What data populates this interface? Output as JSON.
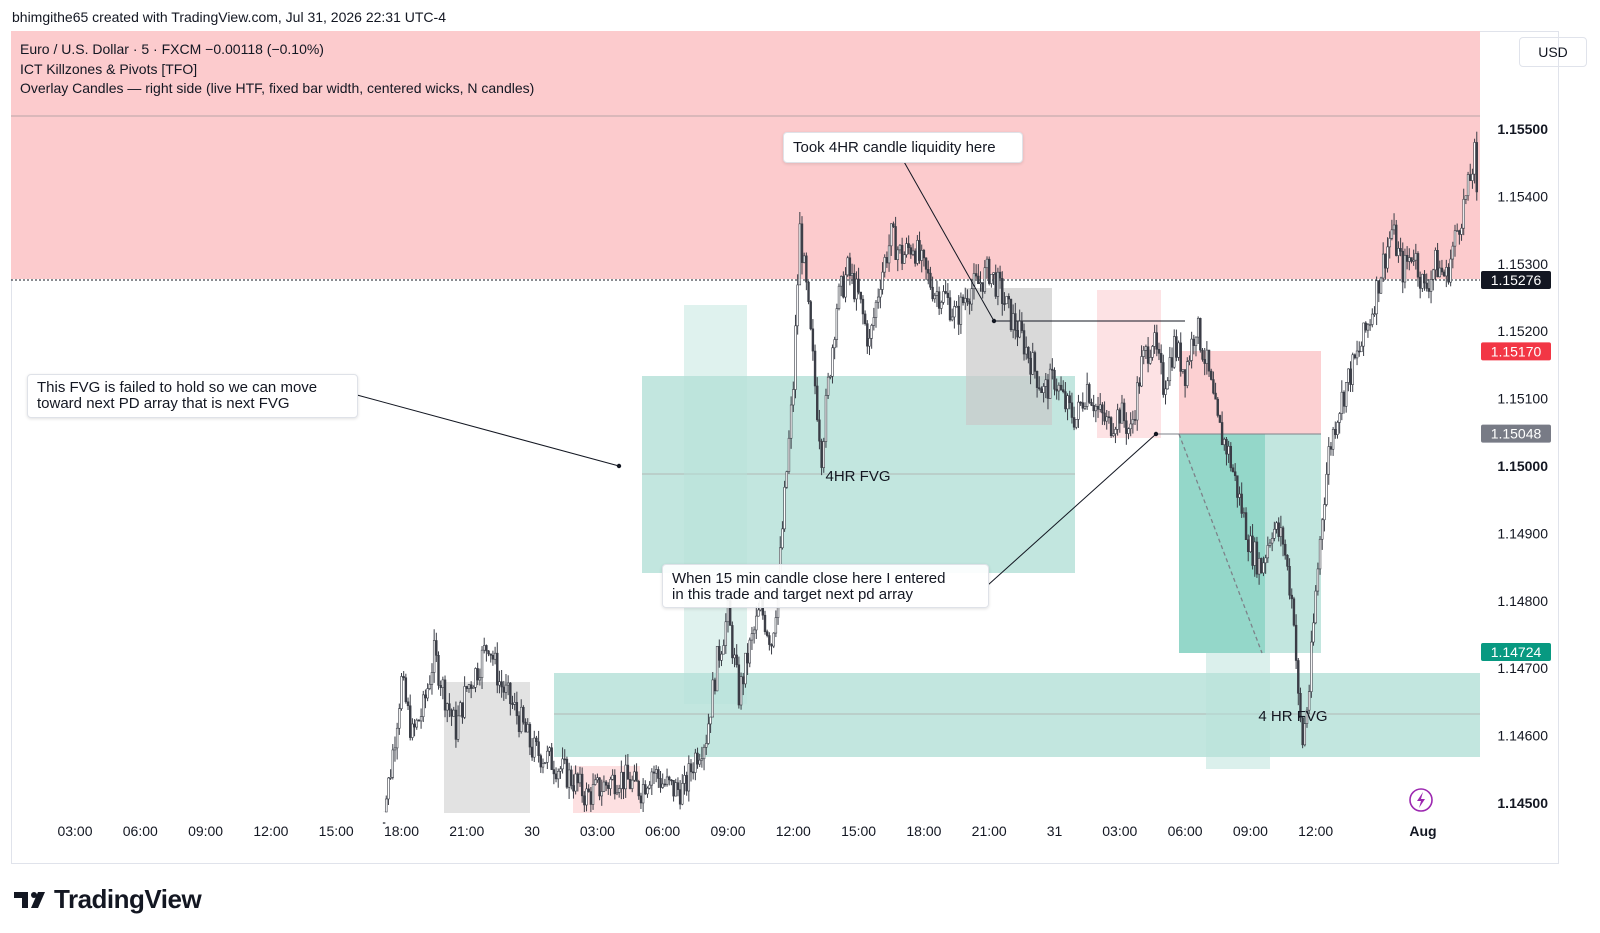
{
  "header": {
    "credit": "bhimgithe65 created with TradingView.com, Jul 31, 2026 22:31 UTC-4"
  },
  "legend": {
    "line1": "Euro / U.S. Dollar · 5 · FXCM  −0.00118 (−0.10%)",
    "line2": "ICT Killzones & Pivots [TFO]",
    "line3": "Overlay Candles — right side (live HTF, fixed bar width, centered wicks, N candles)"
  },
  "currency_button": "USD",
  "footer": {
    "logo_text": "TradingView"
  },
  "annotations": {
    "liquidity": "Took 4HR candle liquidity here",
    "fvg_failed_1": "This FVG is failed to hold  so we can move",
    "fvg_failed_2": "toward next PD array that is next FVG",
    "entry_1": "When 15 min candle close here  I entered",
    "entry_2": "in this trade  and target next pd array",
    "fvg_label_upper": "4HR FVG",
    "fvg_label_lower": "4 HR FVG"
  },
  "colors": {
    "up": "#089981",
    "down": "#f23645",
    "candle": "#3a3d46",
    "premium_zone": "#fccbcd",
    "fvg_zone": "#b7e2d9",
    "gray_box": "#d8d8d8",
    "price_tag_current": "#131722",
    "price_tag_sl": "#f23645",
    "price_tag_entry": "#787b86",
    "price_tag_tp": "#089981"
  },
  "chart_data": {
    "type": "candlestick",
    "symbol": "EURUSD",
    "timeframe": "5",
    "ylim": [
      1.145,
      1.156
    ],
    "y_ticks": [
      "1.15500",
      "1.15400",
      "1.15300",
      "1.15200",
      "1.15100",
      "1.15000",
      "1.14900",
      "1.14800",
      "1.14700",
      "1.14600",
      "1.14500"
    ],
    "x_ticks": [
      "03:00",
      "06:00",
      "09:00",
      "12:00",
      "15:00",
      "18:00",
      "21:00",
      "30",
      "03:00",
      "06:00",
      "09:00",
      "12:00",
      "15:00",
      "18:00",
      "21:00",
      "31",
      "03:00",
      "06:00",
      "09:00",
      "12:00",
      "Aug"
    ],
    "price_tags": [
      {
        "label": "1.15276",
        "value": 1.15276,
        "role": "current"
      },
      {
        "label": "1.15170",
        "value": 1.1517,
        "role": "stop"
      },
      {
        "label": "1.15048",
        "value": 1.15048,
        "role": "entry"
      },
      {
        "label": "1.14724",
        "value": 1.14724,
        "role": "target"
      }
    ],
    "path": [
      [
        14.0,
        1.1445
      ],
      [
        14.5,
        1.1455
      ],
      [
        15.0,
        1.1468
      ],
      [
        15.5,
        1.146
      ],
      [
        16.0,
        1.1464
      ],
      [
        16.5,
        1.1472
      ],
      [
        17.0,
        1.1466
      ],
      [
        17.5,
        1.1461
      ],
      [
        18.0,
        1.1467
      ],
      [
        18.5,
        1.147
      ],
      [
        19.0,
        1.1474
      ],
      [
        19.5,
        1.1468
      ],
      [
        20.0,
        1.1465
      ],
      [
        20.5,
        1.1462
      ],
      [
        21.0,
        1.1458
      ],
      [
        22.0,
        1.1456
      ],
      [
        23.0,
        1.1453
      ],
      [
        23.5,
        1.1451
      ],
      [
        24.0,
        1.1452
      ],
      [
        24.5,
        1.1453
      ],
      [
        25.0,
        1.1454
      ],
      [
        26.0,
        1.1452
      ],
      [
        26.5,
        1.1455
      ],
      [
        27.0,
        1.1453
      ],
      [
        27.5,
        1.1452
      ],
      [
        28.0,
        1.1452
      ],
      [
        28.5,
        1.1457
      ],
      [
        29.0,
        1.146
      ],
      [
        29.5,
        1.1471
      ],
      [
        30.0,
        1.1478
      ],
      [
        30.5,
        1.1466
      ],
      [
        31.0,
        1.1473
      ],
      [
        31.5,
        1.1479
      ],
      [
        32.0,
        1.1474
      ],
      [
        32.3,
        1.1482
      ],
      [
        32.6,
        1.1495
      ],
      [
        33.0,
        1.1512
      ],
      [
        33.3,
        1.1535
      ],
      [
        33.6,
        1.1526
      ],
      [
        34.0,
        1.1512
      ],
      [
        34.3,
        1.1502
      ],
      [
        34.6,
        1.1512
      ],
      [
        35.0,
        1.1524
      ],
      [
        35.5,
        1.1529
      ],
      [
        36.0,
        1.1525
      ],
      [
        36.5,
        1.1518
      ],
      [
        37.0,
        1.1528
      ],
      [
        37.5,
        1.1534
      ],
      [
        38.0,
        1.1531
      ],
      [
        38.5,
        1.1533
      ],
      [
        39.0,
        1.1529
      ],
      [
        39.5,
        1.1526
      ],
      [
        40.0,
        1.1525
      ],
      [
        40.5,
        1.1522
      ],
      [
        41.0,
        1.1526
      ],
      [
        41.5,
        1.1527
      ],
      [
        42.0,
        1.1529
      ],
      [
        42.5,
        1.1526
      ],
      [
        43.0,
        1.1522
      ],
      [
        43.5,
        1.1519
      ],
      [
        44.0,
        1.1515
      ],
      [
        44.5,
        1.1511
      ],
      [
        45.0,
        1.1513
      ],
      [
        45.5,
        1.1509
      ],
      [
        46.0,
        1.1507
      ],
      [
        46.5,
        1.1512
      ],
      [
        47.0,
        1.1508
      ],
      [
        47.5,
        1.1506
      ],
      [
        48.0,
        1.1508
      ],
      [
        48.5,
        1.1505
      ],
      [
        49.0,
        1.1515
      ],
      [
        49.5,
        1.1519
      ],
      [
        50.0,
        1.1512
      ],
      [
        50.5,
        1.1518
      ],
      [
        51.0,
        1.1514
      ],
      [
        51.5,
        1.1521
      ],
      [
        52.0,
        1.1515
      ],
      [
        52.5,
        1.1506
      ],
      [
        53.0,
        1.1502
      ],
      [
        53.5,
        1.1495
      ],
      [
        54.0,
        1.1488
      ],
      [
        54.5,
        1.1485
      ],
      [
        55.0,
        1.1491
      ],
      [
        55.5,
        1.1489
      ],
      [
        56.0,
        1.1478
      ],
      [
        56.2,
        1.1465
      ],
      [
        56.4,
        1.1459
      ],
      [
        56.7,
        1.1467
      ],
      [
        57.0,
        1.1481
      ],
      [
        57.3,
        1.1493
      ],
      [
        57.6,
        1.1502
      ],
      [
        58.0,
        1.1508
      ],
      [
        58.5,
        1.1513
      ],
      [
        59.0,
        1.1517
      ],
      [
        59.5,
        1.1522
      ],
      [
        60.0,
        1.1529
      ],
      [
        60.5,
        1.1535
      ],
      [
        61.0,
        1.1529
      ],
      [
        61.5,
        1.1532
      ],
      [
        62.0,
        1.1526
      ],
      [
        62.5,
        1.153
      ],
      [
        63.0,
        1.1528
      ],
      [
        63.5,
        1.1535
      ],
      [
        64.0,
        1.1541
      ],
      [
        64.3,
        1.1546
      ],
      [
        64.5,
        1.1532
      ]
    ]
  }
}
